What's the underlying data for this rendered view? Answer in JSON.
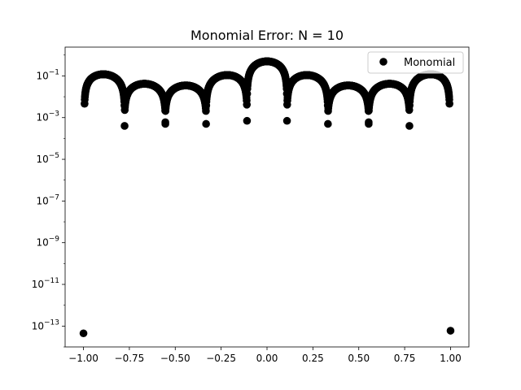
{
  "chart_data": {
    "type": "scatter",
    "title": "Monomial Error: N = 10",
    "xlabel": "",
    "ylabel": "",
    "y_scale": "log",
    "xlim": [
      -1.1,
      1.1
    ],
    "ylim": [
      1e-14,
      2.4
    ],
    "x_ticks": [
      -1.0,
      -0.75,
      -0.5,
      -0.25,
      0.0,
      0.25,
      0.5,
      0.75,
      1.0
    ],
    "x_tick_labels": [
      "−1.00",
      "−0.75",
      "−0.50",
      "−0.25",
      "0.00",
      "0.25",
      "0.50",
      "0.75",
      "1.00"
    ],
    "y_tick_exponents": [
      -13,
      -11,
      -9,
      -7,
      -5,
      -3,
      -1
    ],
    "y_tick_base": "10",
    "grid": false,
    "legend_placement": "top-right",
    "marker_color": "#000000",
    "series": [
      {
        "name": "Monomial",
        "arcs": [
          {
            "x_start": -0.995,
            "x_end": -0.776,
            "peak_x": -0.92,
            "peak_y": 0.12
          },
          {
            "x_start": -0.776,
            "x_end": -0.554,
            "peak_x": -0.68,
            "peak_y": 0.042
          },
          {
            "x_start": -0.554,
            "x_end": -0.332,
            "peak_x": -0.44,
            "peak_y": 0.035
          },
          {
            "x_start": -0.332,
            "x_end": -0.109,
            "peak_x": -0.2,
            "peak_y": 0.11
          },
          {
            "x_start": -0.109,
            "x_end": 0.109,
            "peak_x": 0.0,
            "peak_y": 0.5
          },
          {
            "x_start": 0.109,
            "x_end": 0.332,
            "peak_x": 0.2,
            "peak_y": 0.11
          },
          {
            "x_start": 0.332,
            "x_end": 0.554,
            "peak_x": 0.44,
            "peak_y": 0.035
          },
          {
            "x_start": 0.554,
            "x_end": 0.776,
            "peak_x": 0.68,
            "peak_y": 0.042
          },
          {
            "x_start": 0.776,
            "x_end": 0.995,
            "peak_x": 0.92,
            "peak_y": 0.12
          }
        ],
        "points": [
          {
            "x": -1.0,
            "y": 4.5e-14
          },
          {
            "x": 1.0,
            "y": 6e-14
          },
          {
            "x": -0.776,
            "y": 0.0004
          },
          {
            "x": 0.776,
            "y": 0.0004
          },
          {
            "x": -0.554,
            "y": 0.0006
          },
          {
            "x": -0.554,
            "y": 0.0005
          },
          {
            "x": 0.554,
            "y": 0.0006
          },
          {
            "x": 0.554,
            "y": 0.0005
          },
          {
            "x": -0.332,
            "y": 0.0005
          },
          {
            "x": 0.332,
            "y": 0.0005
          },
          {
            "x": -0.109,
            "y": 0.0007
          },
          {
            "x": 0.109,
            "y": 0.0007
          }
        ]
      }
    ]
  }
}
